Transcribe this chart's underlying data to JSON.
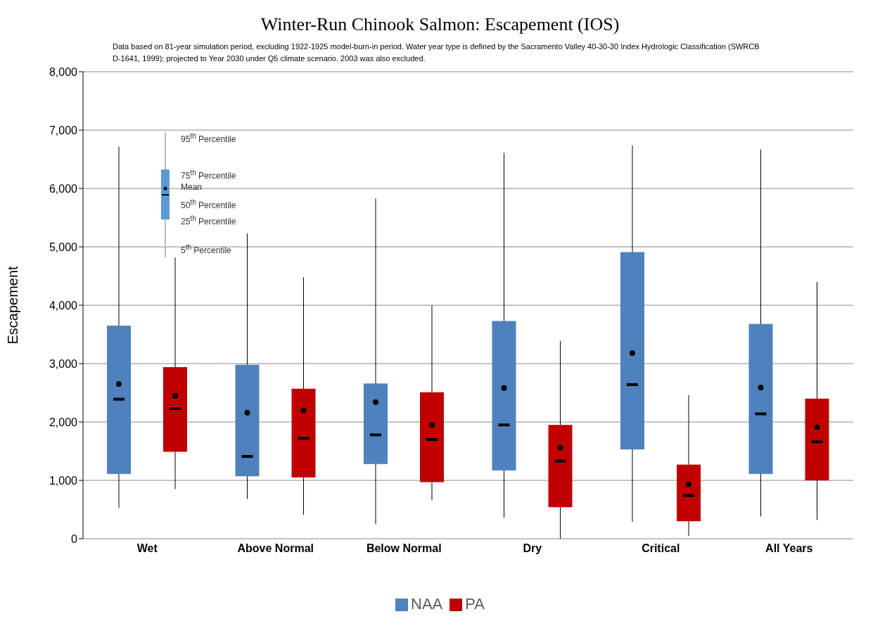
{
  "chart_data": {
    "type": "box",
    "title": "Winter-Run Chinook Salmon: Escapement (IOS)",
    "subtitle": "Data based on 81-year simulation period, excluding 1922-1925 model-burn-in period.  Water year type is defined by the Sacramento Valley 40-30-30 Index Hydrologic Classification (SWRCB D-1641, 1999); projected to Year 2030 under Q5 climate scenario. 2003 was also excluded.",
    "ylabel": "Escapement",
    "annotations": [
      "95$^{th}$ Percentile",
      "75$^{th}$ Percentile",
      "Mean",
      "50$^{th}$ Percentile",
      "25$^{th}$ Percentile",
      "5$^{th}$ Percentile"
    ],
    "categories": [
      "Wet",
      "Above Normal",
      "Below Normal",
      "Dry",
      "Critical",
      "All Years"
    ],
    "series": [
      {
        "name": "NAA",
        "color": "#4f81bd",
        "boxes": [
          {
            "low": 530,
            "q1": 1110,
            "median": 2390,
            "q3": 3650,
            "high": 6720,
            "mean": 2650
          },
          {
            "low": 680,
            "q1": 1070,
            "median": 1410,
            "q3": 2980,
            "high": 5230,
            "mean": 2160
          },
          {
            "low": 250,
            "q1": 1280,
            "median": 1780,
            "q3": 2660,
            "high": 5830,
            "mean": 2340
          },
          {
            "low": 360,
            "q1": 1170,
            "median": 1950,
            "q3": 3730,
            "high": 6610,
            "mean": 2580
          },
          {
            "low": 290,
            "q1": 1530,
            "median": 2640,
            "q3": 4910,
            "high": 6740,
            "mean": 3180
          },
          {
            "low": 380,
            "q1": 1110,
            "median": 2140,
            "q3": 3680,
            "high": 6670,
            "mean": 2590
          }
        ]
      },
      {
        "name": "PA",
        "color": "#c00000",
        "boxes": [
          {
            "low": 850,
            "q1": 1490,
            "median": 2230,
            "q3": 2940,
            "high": 4820,
            "mean": 2450
          },
          {
            "low": 410,
            "q1": 1050,
            "median": 1720,
            "q3": 2570,
            "high": 4480,
            "mean": 2200
          },
          {
            "low": 660,
            "q1": 970,
            "median": 1700,
            "q3": 2510,
            "high": 4000,
            "mean": 1950
          },
          {
            "low": 0,
            "q1": 540,
            "median": 1330,
            "q3": 1950,
            "high": 3390,
            "mean": 1560
          },
          {
            "low": 50,
            "q1": 300,
            "median": 740,
            "q3": 1270,
            "high": 2460,
            "mean": 930
          },
          {
            "low": 320,
            "q1": 1000,
            "median": 1660,
            "q3": 2400,
            "high": 4400,
            "mean": 1910
          }
        ]
      }
    ],
    "ylim": [
      0,
      8000
    ],
    "yticks": [
      0,
      {
        "value": 1000,
        "label": "1,000"
      },
      {
        "value": 2000,
        "label": "2,000"
      },
      {
        "value": 3000,
        "label": "3,000"
      },
      {
        "value": 4000,
        "label": "4,000"
      },
      {
        "value": 5000,
        "label": "5,000"
      },
      {
        "value": 6000,
        "label": "6,000"
      },
      {
        "value": 7000,
        "label": "7,000"
      },
      {
        "value": 8000,
        "label": "8,000"
      }
    ],
    "grid": "y",
    "legend": "bottom"
  }
}
